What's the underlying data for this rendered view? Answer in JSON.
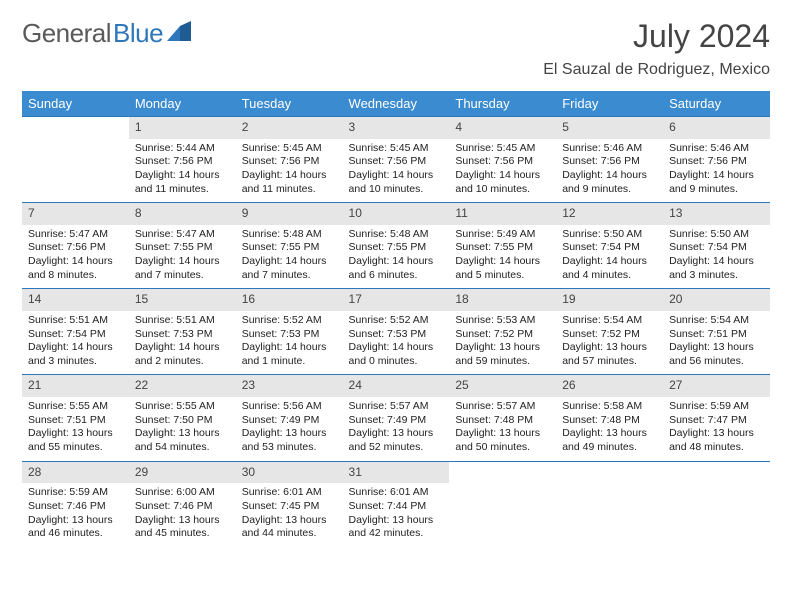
{
  "brand": {
    "part1": "General",
    "part2": "Blue"
  },
  "title": "July 2024",
  "location": "El Sauzal de Rodriguez, Mexico",
  "colors": {
    "header_bg": "#3a8bcf",
    "header_text": "#ffffff",
    "daynum_bg": "#e6e6e6",
    "row_border": "#2f77bb",
    "text": "#222222"
  },
  "day_headers": [
    "Sunday",
    "Monday",
    "Tuesday",
    "Wednesday",
    "Thursday",
    "Friday",
    "Saturday"
  ],
  "weeks": [
    [
      null,
      {
        "n": "1",
        "sr": "5:44 AM",
        "ss": "7:56 PM",
        "dl": "14 hours and 11 minutes."
      },
      {
        "n": "2",
        "sr": "5:45 AM",
        "ss": "7:56 PM",
        "dl": "14 hours and 11 minutes."
      },
      {
        "n": "3",
        "sr": "5:45 AM",
        "ss": "7:56 PM",
        "dl": "14 hours and 10 minutes."
      },
      {
        "n": "4",
        "sr": "5:45 AM",
        "ss": "7:56 PM",
        "dl": "14 hours and 10 minutes."
      },
      {
        "n": "5",
        "sr": "5:46 AM",
        "ss": "7:56 PM",
        "dl": "14 hours and 9 minutes."
      },
      {
        "n": "6",
        "sr": "5:46 AM",
        "ss": "7:56 PM",
        "dl": "14 hours and 9 minutes."
      }
    ],
    [
      {
        "n": "7",
        "sr": "5:47 AM",
        "ss": "7:56 PM",
        "dl": "14 hours and 8 minutes."
      },
      {
        "n": "8",
        "sr": "5:47 AM",
        "ss": "7:55 PM",
        "dl": "14 hours and 7 minutes."
      },
      {
        "n": "9",
        "sr": "5:48 AM",
        "ss": "7:55 PM",
        "dl": "14 hours and 7 minutes."
      },
      {
        "n": "10",
        "sr": "5:48 AM",
        "ss": "7:55 PM",
        "dl": "14 hours and 6 minutes."
      },
      {
        "n": "11",
        "sr": "5:49 AM",
        "ss": "7:55 PM",
        "dl": "14 hours and 5 minutes."
      },
      {
        "n": "12",
        "sr": "5:50 AM",
        "ss": "7:54 PM",
        "dl": "14 hours and 4 minutes."
      },
      {
        "n": "13",
        "sr": "5:50 AM",
        "ss": "7:54 PM",
        "dl": "14 hours and 3 minutes."
      }
    ],
    [
      {
        "n": "14",
        "sr": "5:51 AM",
        "ss": "7:54 PM",
        "dl": "14 hours and 3 minutes."
      },
      {
        "n": "15",
        "sr": "5:51 AM",
        "ss": "7:53 PM",
        "dl": "14 hours and 2 minutes."
      },
      {
        "n": "16",
        "sr": "5:52 AM",
        "ss": "7:53 PM",
        "dl": "14 hours and 1 minute."
      },
      {
        "n": "17",
        "sr": "5:52 AM",
        "ss": "7:53 PM",
        "dl": "14 hours and 0 minutes."
      },
      {
        "n": "18",
        "sr": "5:53 AM",
        "ss": "7:52 PM",
        "dl": "13 hours and 59 minutes."
      },
      {
        "n": "19",
        "sr": "5:54 AM",
        "ss": "7:52 PM",
        "dl": "13 hours and 57 minutes."
      },
      {
        "n": "20",
        "sr": "5:54 AM",
        "ss": "7:51 PM",
        "dl": "13 hours and 56 minutes."
      }
    ],
    [
      {
        "n": "21",
        "sr": "5:55 AM",
        "ss": "7:51 PM",
        "dl": "13 hours and 55 minutes."
      },
      {
        "n": "22",
        "sr": "5:55 AM",
        "ss": "7:50 PM",
        "dl": "13 hours and 54 minutes."
      },
      {
        "n": "23",
        "sr": "5:56 AM",
        "ss": "7:49 PM",
        "dl": "13 hours and 53 minutes."
      },
      {
        "n": "24",
        "sr": "5:57 AM",
        "ss": "7:49 PM",
        "dl": "13 hours and 52 minutes."
      },
      {
        "n": "25",
        "sr": "5:57 AM",
        "ss": "7:48 PM",
        "dl": "13 hours and 50 minutes."
      },
      {
        "n": "26",
        "sr": "5:58 AM",
        "ss": "7:48 PM",
        "dl": "13 hours and 49 minutes."
      },
      {
        "n": "27",
        "sr": "5:59 AM",
        "ss": "7:47 PM",
        "dl": "13 hours and 48 minutes."
      }
    ],
    [
      {
        "n": "28",
        "sr": "5:59 AM",
        "ss": "7:46 PM",
        "dl": "13 hours and 46 minutes."
      },
      {
        "n": "29",
        "sr": "6:00 AM",
        "ss": "7:46 PM",
        "dl": "13 hours and 45 minutes."
      },
      {
        "n": "30",
        "sr": "6:01 AM",
        "ss": "7:45 PM",
        "dl": "13 hours and 44 minutes."
      },
      {
        "n": "31",
        "sr": "6:01 AM",
        "ss": "7:44 PM",
        "dl": "13 hours and 42 minutes."
      },
      null,
      null,
      null
    ]
  ],
  "labels": {
    "sunrise": "Sunrise:",
    "sunset": "Sunset:",
    "daylight": "Daylight:"
  }
}
